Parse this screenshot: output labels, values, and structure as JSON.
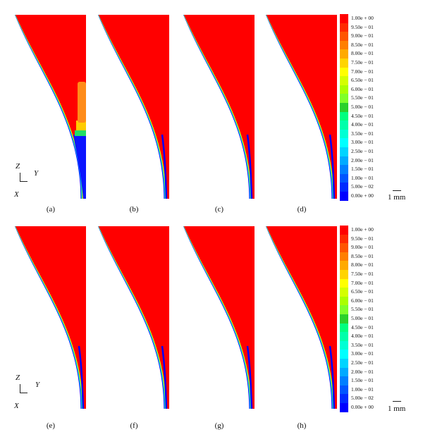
{
  "colorbar": {
    "labels": [
      "1.00e + 00",
      "9.50e − 01",
      "9.00e − 01",
      "8.50e − 01",
      "8.00e − 01",
      "7.50e − 01",
      "7.00e − 01",
      "6.50e − 01",
      "6.00e − 01",
      "5.50e − 01",
      "5.00e − 01",
      "4.50e − 01",
      "4.00e − 01",
      "3.50e − 01",
      "3.00e − 01",
      "2.50e − 01",
      "2.00e − 01",
      "1.50e − 01",
      "1.00e − 01",
      "5.00e − 02",
      "0.00e + 00"
    ],
    "colors": [
      "#ff0000",
      "#ff2a00",
      "#ff5500",
      "#ff7f00",
      "#ffaa00",
      "#ffd400",
      "#ffff00",
      "#d4ff00",
      "#aaff00",
      "#7fff2a",
      "#2bd02b",
      "#00ff7f",
      "#00ffaa",
      "#00ffd4",
      "#00ffff",
      "#00d4ff",
      "#00aaff",
      "#007fff",
      "#0055ff",
      "#002aff",
      "#0000ff"
    ]
  },
  "panels": {
    "top": [
      "(a)",
      "(b)",
      "(c)",
      "(d)"
    ],
    "bottom": [
      "(e)",
      "(f)",
      "(g)",
      "(h)"
    ]
  },
  "axes": {
    "z": "Z",
    "y": "Y",
    "x": "X"
  },
  "scale_bar": "1 mm"
}
